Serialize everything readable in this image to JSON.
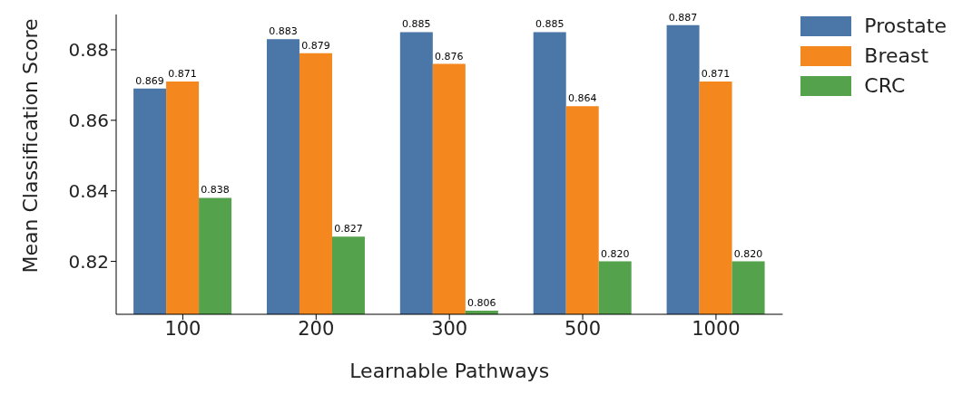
{
  "chart_data": {
    "type": "bar",
    "xlabel": "Learnable Pathways",
    "ylabel": "Mean Classification Score",
    "categories": [
      "100",
      "200",
      "300",
      "500",
      "1000"
    ],
    "series": [
      {
        "name": "Prostate",
        "color": "#4a76a8",
        "values": [
          0.869,
          0.883,
          0.885,
          0.885,
          0.887
        ],
        "value_labels": [
          "0.869",
          "0.883",
          "0.885",
          "0.885",
          "0.887"
        ]
      },
      {
        "name": "Breast",
        "color": "#f4871e",
        "values": [
          0.871,
          0.879,
          0.876,
          0.864,
          0.871
        ],
        "value_labels": [
          "0.871",
          "0.879",
          "0.876",
          "0.864",
          "0.871"
        ]
      },
      {
        "name": "CRC",
        "color": "#54a24b",
        "values": [
          0.838,
          0.827,
          0.806,
          0.82,
          0.82
        ],
        "value_labels": [
          "0.838",
          "0.827",
          "0.806",
          "0.820",
          "0.820"
        ]
      }
    ],
    "ylim": [
      0.805,
      0.89
    ],
    "yticks": [
      0.82,
      0.84,
      0.86,
      0.88
    ],
    "grid": false,
    "legend": "top right"
  }
}
